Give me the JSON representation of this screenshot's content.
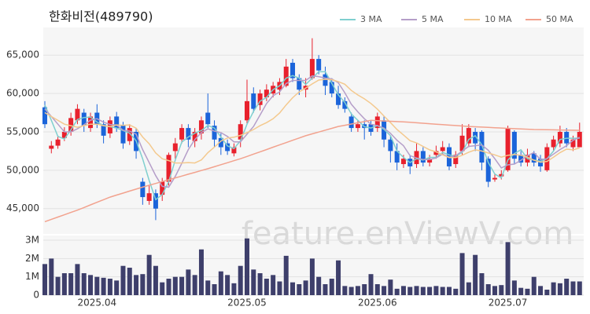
{
  "chart_data": {
    "type": "candlestick",
    "title": "한화비전(489790)",
    "watermark": "feature.enViewV.com",
    "up_color": "#e8212d",
    "down_color": "#1b64da",
    "grid": true,
    "categories": [
      null,
      null,
      null,
      null,
      null,
      null,
      null,
      null,
      "2025.04",
      null,
      null,
      null,
      null,
      null,
      null,
      null,
      null,
      null,
      null,
      null,
      null,
      null,
      null,
      null,
      null,
      null,
      null,
      null,
      null,
      null,
      null,
      "2025.05",
      null,
      null,
      null,
      null,
      null,
      null,
      null,
      null,
      null,
      null,
      null,
      null,
      null,
      null,
      null,
      null,
      null,
      null,
      null,
      "2025.06",
      null,
      null,
      null,
      null,
      null,
      null,
      null,
      null,
      null,
      null,
      null,
      null,
      null,
      null,
      null,
      null,
      null,
      null,
      null,
      "2025.07",
      null,
      null,
      null,
      null,
      null,
      null,
      null,
      null,
      null,
      null,
      null
    ],
    "open": [
      58200,
      52800,
      53200,
      54200,
      55000,
      56500,
      57500,
      55500,
      57500,
      56000,
      54800,
      57000,
      55800,
      53800,
      55000,
      48500,
      46000,
      47000,
      46800,
      48500,
      52500,
      54000,
      55500,
      53800,
      54800,
      57500,
      55800,
      54200,
      53500,
      52200,
      54000,
      56500,
      60000,
      58500,
      59500,
      60000,
      60500,
      61000,
      64000,
      62000,
      60500,
      62000,
      64500,
      62500,
      61500,
      60000,
      59000,
      57000,
      55500,
      56000,
      56000,
      55500,
      56500,
      54000,
      52500,
      50800,
      51500,
      50800,
      52500,
      51000,
      52000,
      52500,
      53000,
      50800,
      52500,
      53500,
      55000,
      55000,
      51500,
      48800,
      49200,
      50000,
      55000,
      52000,
      51000,
      52200,
      51500,
      50000,
      53000,
      53500,
      55000,
      53000,
      53000
    ],
    "high": [
      59000,
      53800,
      54500,
      55600,
      57500,
      58600,
      58000,
      57500,
      58600,
      56500,
      57000,
      57600,
      56300,
      56000,
      55500,
      49000,
      48000,
      47500,
      49000,
      52300,
      54200,
      56000,
      56000,
      55500,
      57000,
      60000,
      56500,
      54800,
      54000,
      53500,
      56500,
      61800,
      60800,
      60500,
      61200,
      61500,
      62000,
      64500,
      64500,
      62500,
      62000,
      67200,
      65000,
      63500,
      62000,
      61000,
      59500,
      57500,
      56500,
      56500,
      56500,
      57500,
      57000,
      54500,
      53500,
      52000,
      52000,
      53500,
      53000,
      52000,
      53200,
      53800,
      53500,
      52500,
      56000,
      56000,
      55500,
      55200,
      51800,
      49500,
      50000,
      55800,
      55200,
      52500,
      52800,
      52500,
      52000,
      53500,
      54500,
      55800,
      55500,
      54500,
      56200
    ],
    "low": [
      55500,
      52200,
      52800,
      53800,
      54500,
      56000,
      55000,
      55000,
      55500,
      53500,
      54200,
      55000,
      52800,
      53300,
      51500,
      45500,
      45500,
      43500,
      46000,
      48000,
      51500,
      53500,
      53000,
      53000,
      54000,
      55500,
      53000,
      52000,
      52000,
      51800,
      53000,
      56000,
      57500,
      57800,
      59000,
      59500,
      59800,
      60800,
      61500,
      59800,
      59500,
      61800,
      62500,
      59800,
      59500,
      58000,
      57500,
      55000,
      55000,
      54000,
      54500,
      55000,
      53000,
      51000,
      50000,
      50300,
      49500,
      50300,
      50500,
      50500,
      51500,
      52000,
      50000,
      50300,
      52000,
      53000,
      52500,
      50000,
      47800,
      48500,
      48800,
      49800,
      50800,
      50500,
      50500,
      50500,
      49800,
      49800,
      52500,
      53000,
      53000,
      52500,
      53000
    ],
    "close": [
      56000,
      53200,
      54000,
      55000,
      56800,
      58000,
      55800,
      57000,
      56000,
      54500,
      56500,
      55500,
      53500,
      55500,
      52500,
      46500,
      47000,
      45000,
      48500,
      52000,
      53500,
      55500,
      54000,
      55000,
      56500,
      56000,
      54000,
      53000,
      52500,
      53000,
      56000,
      59000,
      58000,
      60000,
      60500,
      61000,
      61500,
      63500,
      62000,
      60500,
      61000,
      64500,
      63000,
      61000,
      60000,
      58500,
      58000,
      55500,
      56000,
      55500,
      55000,
      57000,
      54000,
      52500,
      51000,
      51500,
      50500,
      52500,
      51000,
      51500,
      52500,
      53000,
      50500,
      52000,
      54500,
      55500,
      53500,
      51000,
      48500,
      49000,
      49500,
      55500,
      51500,
      51000,
      52000,
      51000,
      50500,
      53000,
      54000,
      55000,
      53500,
      54000,
      55000
    ],
    "series": [
      {
        "name": "3 MA",
        "color": "#7fcfcf",
        "values": [
          58500,
          56500,
          54400,
          54070,
          55270,
          56600,
          56870,
          56930,
          56270,
          55830,
          55670,
          55500,
          55170,
          54830,
          53830,
          51500,
          48670,
          46170,
          46830,
          48500,
          51330,
          53670,
          54330,
          54830,
          55170,
          55830,
          55500,
          54330,
          53170,
          52830,
          53830,
          56000,
          57670,
          59000,
          59500,
          60500,
          61000,
          62000,
          62330,
          62000,
          61170,
          62000,
          62830,
          62830,
          61330,
          59830,
          58830,
          57330,
          56500,
          55670,
          55500,
          55830,
          55330,
          54500,
          52500,
          51670,
          51000,
          51500,
          51330,
          51670,
          51670,
          52330,
          52000,
          51830,
          52330,
          54000,
          54500,
          53330,
          51000,
          49500,
          49000,
          51330,
          52170,
          52670,
          51500,
          51330,
          51170,
          51500,
          52500,
          54000,
          54170,
          54170,
          54170
        ]
      },
      {
        "name": "5 MA",
        "color": "#b59ec9",
        "values": [
          58000,
          57000,
          56000,
          55000,
          55000,
          55400,
          55920,
          56520,
          56720,
          56260,
          55960,
          55900,
          55200,
          55100,
          54700,
          52700,
          51000,
          49300,
          47900,
          47800,
          49200,
          50900,
          52700,
          54000,
          54900,
          55400,
          55100,
          54900,
          54400,
          53700,
          53700,
          54700,
          55700,
          57200,
          58700,
          59700,
          60200,
          61300,
          61700,
          61700,
          61700,
          62300,
          62200,
          62000,
          61900,
          61400,
          60100,
          58600,
          57600,
          56700,
          56000,
          55800,
          55500,
          54800,
          53900,
          53200,
          51900,
          51600,
          51400,
          51400,
          51600,
          52100,
          51700,
          51900,
          52500,
          53100,
          53200,
          53300,
          52600,
          51500,
          50300,
          50700,
          50800,
          51300,
          51900,
          52300,
          51400,
          51500,
          52100,
          52700,
          53200,
          53900,
          54300
        ]
      },
      {
        "name": "10 MA",
        "color": "#f4c98e",
        "values": [
          57500,
          57000,
          56500,
          56000,
          55800,
          55600,
          55800,
          56000,
          56000,
          55800,
          55680,
          55910,
          55860,
          55910,
          55480,
          54330,
          53450,
          52250,
          51500,
          51250,
          50950,
          50950,
          51000,
          50950,
          51350,
          52300,
          53000,
          53800,
          54200,
          54300,
          54550,
          54900,
          55300,
          55800,
          56200,
          56700,
          57450,
          58500,
          59450,
          60200,
          60700,
          61250,
          61750,
          61850,
          61800,
          61550,
          61200,
          60400,
          59800,
          59300,
          58700,
          57950,
          57050,
          56200,
          55300,
          54600,
          53850,
          53550,
          53100,
          52650,
          52400,
          52000,
          51650,
          51650,
          51950,
          52350,
          52650,
          52500,
          52250,
          52000,
          51700,
          51950,
          52050,
          51950,
          51700,
          51300,
          51050,
          51150,
          51700,
          52300,
          52750,
          52650,
          52900
        ]
      },
      {
        "name": "50 MA",
        "color": "#f2a28e",
        "values": [
          43300,
          43600,
          43900,
          44200,
          44500,
          44800,
          45140,
          45480,
          45820,
          46160,
          46500,
          46760,
          47020,
          47280,
          47540,
          47800,
          48040,
          48280,
          48520,
          48760,
          49000,
          49240,
          49480,
          49720,
          49960,
          50200,
          50460,
          50720,
          50980,
          51240,
          51500,
          51800,
          52100,
          52400,
          52700,
          53000,
          53300,
          53600,
          53900,
          54200,
          54500,
          54740,
          54980,
          55220,
          55460,
          55700,
          55860,
          56020,
          56180,
          56340,
          56500,
          56460,
          56420,
          56380,
          56340,
          56300,
          56240,
          56180,
          56120,
          56060,
          56000,
          55940,
          55880,
          55820,
          55760,
          55700,
          55660,
          55620,
          55580,
          55540,
          55500,
          55460,
          55420,
          55380,
          55340,
          55300,
          55290,
          55270,
          55260,
          55240,
          55230,
          55210,
          55200
        ]
      }
    ],
    "ylim": [
      41700,
      68600
    ],
    "yticks": [
      {
        "value": 45000,
        "label": "45,000"
      },
      {
        "value": 50000,
        "label": "50,000"
      },
      {
        "value": 55000,
        "label": "55,000"
      },
      {
        "value": 60000,
        "label": "60,000"
      },
      {
        "value": 65000,
        "label": "65,000"
      }
    ],
    "volume": {
      "color": "#3e3f6b",
      "values": [
        1700000,
        2000000,
        1000000,
        1200000,
        1200000,
        1700000,
        1200000,
        1100000,
        1000000,
        950000,
        900000,
        800000,
        1600000,
        1500000,
        1100000,
        1150000,
        2200000,
        1600000,
        700000,
        900000,
        1000000,
        1000000,
        1400000,
        1100000,
        2500000,
        800000,
        600000,
        1300000,
        1100000,
        650000,
        1600000,
        3100000,
        1400000,
        1200000,
        900000,
        1100000,
        750000,
        2150000,
        700000,
        600000,
        800000,
        2000000,
        1000000,
        600000,
        900000,
        1900000,
        500000,
        450000,
        500000,
        600000,
        1150000,
        600000,
        500000,
        850000,
        350000,
        500000,
        450000,
        500000,
        450000,
        450000,
        500000,
        450000,
        450000,
        350000,
        2300000,
        700000,
        2200000,
        1200000,
        600000,
        500000,
        550000,
        2900000,
        800000,
        400000,
        350000,
        1000000,
        500000,
        300000,
        700000,
        650000,
        900000,
        750000,
        750000
      ],
      "ylim": [
        0,
        3260000
      ],
      "yticks": [
        0,
        {
          "value": 1000000,
          "label": "1M"
        },
        {
          "value": 2000000,
          "label": "2M"
        },
        {
          "value": 3000000,
          "label": "3M"
        }
      ]
    }
  }
}
